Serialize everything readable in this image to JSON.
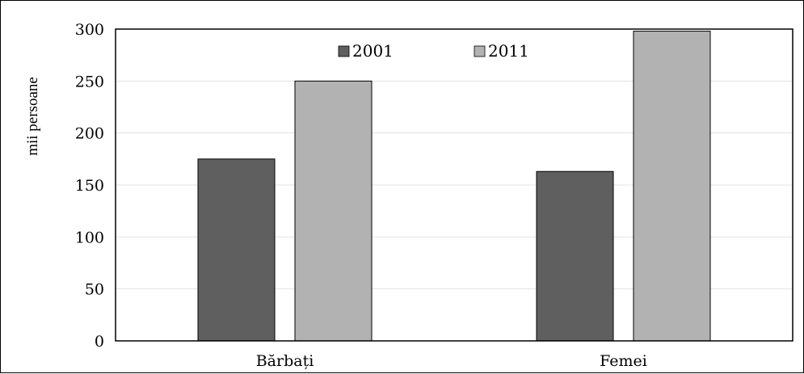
{
  "chart_data": {
    "type": "bar",
    "title": "",
    "xlabel": "",
    "ylabel": "mii persoane",
    "categories": [
      "Bărbați",
      "Femei"
    ],
    "series": [
      {
        "name": "2001",
        "values": [
          175,
          163
        ],
        "color": "#5f5f5f"
      },
      {
        "name": "2011",
        "values": [
          250,
          298
        ],
        "color": "#b2b2b2"
      }
    ],
    "ylim": [
      0,
      300
    ],
    "yticks": [
      0,
      50,
      100,
      150,
      200,
      250,
      300
    ],
    "grid": true,
    "legend_position": "top-center"
  }
}
